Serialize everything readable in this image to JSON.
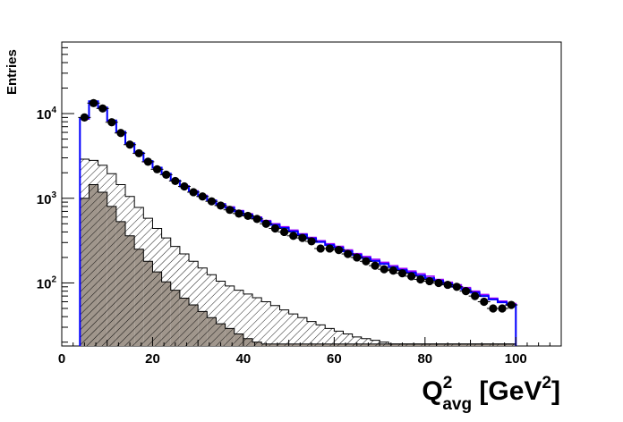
{
  "chart_data": {
    "type": "histogram",
    "xlabel": {
      "main": "Q",
      "sup": "2",
      "sub": "avg",
      "unit_open": " [GeV",
      "unit_sup": "2",
      "unit_close": "]"
    },
    "ylabel": "Entries",
    "xlim": [
      0,
      110
    ],
    "ylim": [
      18,
      70000
    ],
    "yscale": "log",
    "x_ticks": [
      0,
      20,
      40,
      60,
      80,
      100
    ],
    "y_ticks": [
      {
        "value": 100,
        "mantissa": "10",
        "exp": "2"
      },
      {
        "value": 1000,
        "mantissa": "10",
        "exp": "3"
      },
      {
        "value": 10000,
        "mantissa": "10",
        "exp": "4"
      }
    ],
    "bin_edges": [
      4,
      6,
      8,
      10,
      12,
      14,
      16,
      18,
      20,
      22,
      24,
      26,
      28,
      30,
      32,
      34,
      36,
      38,
      40,
      42,
      44,
      46,
      48,
      50,
      52,
      54,
      56,
      58,
      60,
      62,
      64,
      66,
      68,
      70,
      72,
      74,
      76,
      78,
      80,
      82,
      84,
      86,
      88,
      90,
      92,
      94,
      96,
      98,
      100
    ],
    "series": [
      {
        "kind": "mc-step-purple",
        "color": "#9900ff",
        "values": [
          8600,
          13800,
          11600,
          8200,
          6000,
          4400,
          3400,
          2700,
          2300,
          1950,
          1620,
          1400,
          1220,
          1080,
          950,
          860,
          790,
          715,
          655,
          600,
          545,
          500,
          460,
          420,
          380,
          345,
          315,
          290,
          270,
          245,
          222,
          205,
          190,
          175,
          160,
          148,
          138,
          128,
          120,
          110,
          102,
          95,
          88,
          80,
          73,
          66,
          61,
          57
        ]
      },
      {
        "kind": "mc-step-blue",
        "color": "#0000ff",
        "values": [
          8800,
          14000,
          11800,
          8300,
          6100,
          4450,
          3450,
          2750,
          2300,
          1950,
          1620,
          1380,
          1200,
          1060,
          940,
          850,
          770,
          700,
          640,
          585,
          530,
          485,
          445,
          405,
          370,
          335,
          305,
          280,
          260,
          236,
          214,
          197,
          182,
          168,
          154,
          142,
          132,
          122,
          114,
          106,
          98,
          90,
          84,
          77,
          70,
          64,
          59,
          55
        ]
      },
      {
        "kind": "hatched-background",
        "color": "#000000",
        "values": [
          2900,
          2800,
          2450,
          1950,
          1450,
          1050,
          780,
          580,
          440,
          340,
          270,
          220,
          180,
          150,
          125,
          105,
          92,
          82,
          74,
          67,
          60,
          54,
          48,
          43,
          39,
          35,
          32,
          29,
          27,
          25,
          23,
          22,
          21,
          20,
          19,
          19,
          19,
          19,
          19,
          19,
          19,
          19,
          19,
          19,
          19,
          19,
          19,
          19
        ]
      },
      {
        "kind": "filled-background",
        "color": "#a0968c",
        "values": [
          1000,
          1450,
          1180,
          800,
          530,
          360,
          250,
          180,
          135,
          103,
          82,
          66,
          55,
          46,
          39,
          33,
          29,
          25,
          22,
          20,
          19,
          19,
          19,
          19,
          19,
          19,
          19,
          19,
          19,
          19,
          19,
          19,
          19,
          19,
          19,
          19,
          19,
          19,
          19,
          19,
          19,
          19,
          19,
          19,
          19,
          19,
          19,
          19
        ]
      },
      {
        "kind": "data-points",
        "color": "#000000",
        "x": [
          5,
          7,
          9,
          11,
          13,
          15,
          17,
          19,
          21,
          23,
          25,
          27,
          29,
          31,
          33,
          35,
          37,
          39,
          41,
          43,
          45,
          47,
          49,
          51,
          53,
          55,
          57,
          59,
          61,
          63,
          65,
          67,
          69,
          71,
          73,
          75,
          77,
          79,
          81,
          83,
          85,
          87,
          89,
          91,
          93,
          95,
          97,
          99
        ],
        "values": [
          9000,
          13300,
          11500,
          7900,
          5900,
          4300,
          3400,
          2700,
          2200,
          1900,
          1600,
          1380,
          1180,
          1050,
          920,
          820,
          730,
          660,
          620,
          570,
          500,
          440,
          400,
          360,
          340,
          310,
          255,
          255,
          245,
          220,
          200,
          180,
          160,
          145,
          140,
          130,
          120,
          110,
          105,
          100,
          95,
          90,
          80,
          70,
          60,
          50,
          50,
          55
        ]
      }
    ]
  }
}
